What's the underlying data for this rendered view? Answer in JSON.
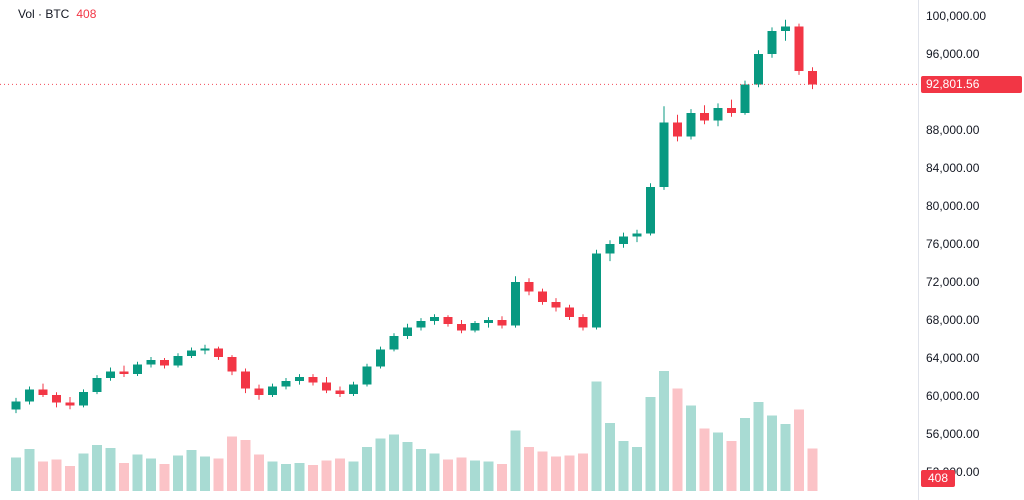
{
  "legend": {
    "title": "Vol · BTC",
    "value": "408"
  },
  "colors": {
    "up": "#089981",
    "down": "#f23645",
    "vol_up": "#a8dbd3",
    "vol_down": "#fbc3c7",
    "last_price_line": "#f23645",
    "badge_bg": "#f23645",
    "axis_text": "#131722"
  },
  "price_axis": {
    "last_price_badge": "92,801.56",
    "volume_badge": "408",
    "labels": [
      {
        "value": 100000,
        "text": "100,000.00"
      },
      {
        "value": 96000,
        "text": "96,000.00"
      },
      {
        "value": 88000,
        "text": "88,000.00"
      },
      {
        "value": 84000,
        "text": "84,000.00"
      },
      {
        "value": 80000,
        "text": "80,000.00"
      },
      {
        "value": 76000,
        "text": "76,000.00"
      },
      {
        "value": 72000,
        "text": "72,000.00"
      },
      {
        "value": 68000,
        "text": "68,000.00"
      },
      {
        "value": 64000,
        "text": "64,000.00"
      },
      {
        "value": 60000,
        "text": "60,000.00"
      },
      {
        "value": 56000,
        "text": "56,000.00"
      },
      {
        "value": 52000,
        "text": "52,000.00"
      }
    ]
  },
  "chart_data": {
    "type": "candlestick",
    "title": "Vol · BTC",
    "last_price": 92801.56,
    "last_volume": 408,
    "grid": false,
    "legend_position": "top-left",
    "y_axis": {
      "min": 52000,
      "max": 100000,
      "step": 4000,
      "side": "right"
    },
    "candle_columns": [
      "open",
      "high",
      "low",
      "close",
      "volume"
    ],
    "candles": [
      [
        58600,
        59800,
        58200,
        59400,
        320
      ],
      [
        59400,
        61000,
        59100,
        60700,
        400
      ],
      [
        60700,
        61300,
        59900,
        60100,
        280
      ],
      [
        60100,
        60400,
        58800,
        59300,
        300
      ],
      [
        59300,
        59900,
        58600,
        59000,
        240
      ],
      [
        59000,
        60700,
        58800,
        60400,
        360
      ],
      [
        60400,
        62200,
        60200,
        61900,
        440
      ],
      [
        61900,
        63000,
        61600,
        62600,
        410
      ],
      [
        62600,
        63200,
        62000,
        62300,
        270
      ],
      [
        62300,
        63600,
        62100,
        63300,
        350
      ],
      [
        63300,
        64100,
        63000,
        63800,
        310
      ],
      [
        63800,
        64000,
        62900,
        63200,
        260
      ],
      [
        63200,
        64500,
        63000,
        64200,
        340
      ],
      [
        64200,
        65100,
        64000,
        64800,
        390
      ],
      [
        64800,
        65400,
        64400,
        65000,
        330
      ],
      [
        65000,
        65200,
        63800,
        64100,
        310
      ],
      [
        64100,
        64300,
        62200,
        62600,
        520
      ],
      [
        62600,
        62900,
        60300,
        60800,
        490
      ],
      [
        60800,
        61200,
        59600,
        60100,
        350
      ],
      [
        60100,
        61300,
        59900,
        61000,
        280
      ],
      [
        61000,
        61900,
        60700,
        61600,
        260
      ],
      [
        61600,
        62300,
        61200,
        62000,
        270
      ],
      [
        62000,
        62300,
        61100,
        61400,
        250
      ],
      [
        61400,
        62000,
        60300,
        60600,
        290
      ],
      [
        60600,
        61000,
        59900,
        60200,
        310
      ],
      [
        60200,
        61500,
        60000,
        61200,
        280
      ],
      [
        61200,
        63400,
        61000,
        63100,
        420
      ],
      [
        63100,
        65200,
        62900,
        64900,
        500
      ],
      [
        64900,
        66600,
        64700,
        66300,
        540
      ],
      [
        66300,
        67600,
        66000,
        67200,
        470
      ],
      [
        67200,
        68200,
        66900,
        67900,
        400
      ],
      [
        67900,
        68600,
        67500,
        68300,
        360
      ],
      [
        68300,
        68500,
        67300,
        67600,
        300
      ],
      [
        67600,
        68000,
        66600,
        66900,
        320
      ],
      [
        66900,
        67900,
        66700,
        67700,
        290
      ],
      [
        67700,
        68300,
        67200,
        68000,
        280
      ],
      [
        68000,
        68400,
        67100,
        67400,
        260
      ],
      [
        67400,
        72600,
        67200,
        72000,
        580
      ],
      [
        72000,
        72400,
        70600,
        71000,
        420
      ],
      [
        71000,
        71300,
        69600,
        69900,
        380
      ],
      [
        69900,
        70300,
        68900,
        69300,
        330
      ],
      [
        69300,
        69600,
        68000,
        68300,
        340
      ],
      [
        68300,
        68600,
        66900,
        67200,
        360
      ],
      [
        67200,
        75400,
        67000,
        75000,
        1050
      ],
      [
        75000,
        76400,
        74200,
        76000,
        650
      ],
      [
        76000,
        77200,
        75600,
        76800,
        480
      ],
      [
        76800,
        77500,
        76200,
        77100,
        420
      ],
      [
        77100,
        82400,
        76900,
        82000,
        900
      ],
      [
        82000,
        90500,
        81700,
        88800,
        1150
      ],
      [
        88800,
        89600,
        86800,
        87300,
        980
      ],
      [
        87300,
        90200,
        87000,
        89800,
        820
      ],
      [
        89800,
        90600,
        88600,
        89000,
        600
      ],
      [
        89000,
        90800,
        88400,
        90300,
        560
      ],
      [
        90300,
        91200,
        89400,
        89800,
        480
      ],
      [
        89800,
        93200,
        89600,
        92800,
        700
      ],
      [
        92800,
        96400,
        92500,
        96000,
        850
      ],
      [
        96000,
        98800,
        95600,
        98400,
        720
      ],
      [
        98400,
        99600,
        97400,
        98900,
        640
      ],
      [
        98900,
        99200,
        93800,
        94200,
        780
      ],
      [
        94200,
        94600,
        92300,
        92801.56,
        408
      ]
    ]
  }
}
